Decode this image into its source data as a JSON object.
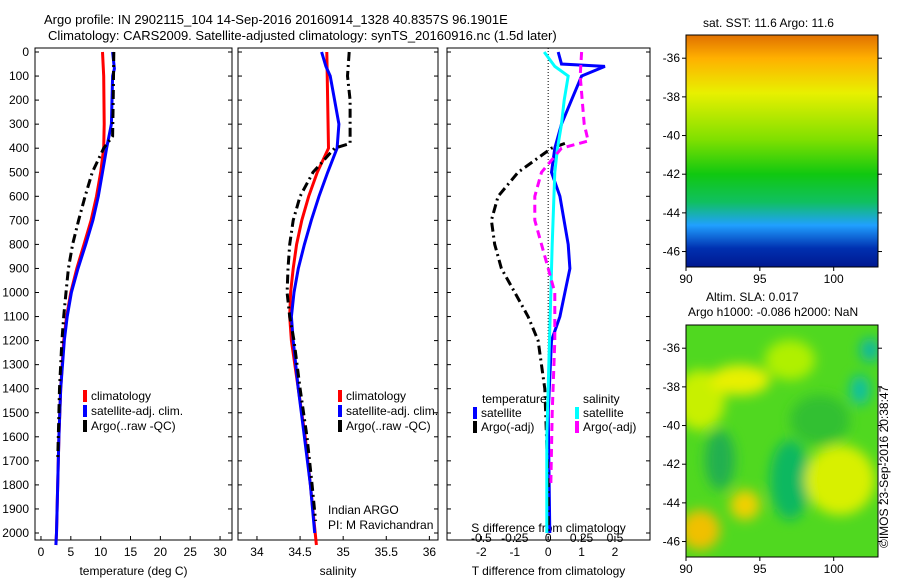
{
  "title_line1": "Argo profile: IN 2902115_104 14-Sep-2016 20160914_1328 40.8357S 96.1901E",
  "title_line2": "Climatology: CARS2009. Satellite-adjusted climatology: synTS_20160916.nc (1.5d later)",
  "credit": "©IMOS 23-Sep-2016 20:38:47",
  "chart_data": [
    {
      "type": "line",
      "id": "temperature",
      "xlabel": "temperature (deg C)",
      "xlim": [
        -1,
        32
      ],
      "ylim": [
        2060,
        0
      ],
      "xticks": [
        0,
        5,
        10,
        15,
        20,
        25,
        30
      ],
      "yticks": [
        0,
        100,
        200,
        300,
        400,
        500,
        600,
        700,
        800,
        900,
        1000,
        1100,
        1200,
        1300,
        1400,
        1500,
        1600,
        1700,
        1800,
        1900,
        2000
      ],
      "legend": [
        "climatology",
        "satellite-adj. clim.",
        "Argo(..raw -QC)"
      ],
      "series": [
        {
          "name": "climatology",
          "color": "#ff0000",
          "dash": false,
          "depth": [
            0,
            100,
            300,
            400,
            500,
            600,
            700,
            800,
            900,
            1000,
            1100,
            1200,
            1400,
            1600,
            1800,
            2000,
            2050
          ],
          "values": [
            10.3,
            10.5,
            10.6,
            10.5,
            10.0,
            9.3,
            8.4,
            7.2,
            6.0,
            5.0,
            4.3,
            3.8,
            3.3,
            3.0,
            2.8,
            2.6,
            2.5
          ]
        },
        {
          "name": "satellite-adj. clim.",
          "color": "#0000ff",
          "dash": false,
          "depth": [
            0,
            70,
            100,
            300,
            400,
            500,
            600,
            700,
            800,
            900,
            1000,
            1100,
            1200,
            1400,
            1600,
            1800,
            2000,
            2050
          ],
          "values": [
            12.0,
            12.3,
            12.0,
            11.8,
            11.0,
            10.3,
            9.6,
            8.7,
            7.5,
            6.2,
            5.1,
            4.4,
            3.9,
            3.3,
            3.0,
            2.8,
            2.6,
            2.5
          ]
        },
        {
          "name": "Argo(..raw -QC)",
          "color": "#000000",
          "dash": true,
          "depth": [
            0,
            200,
            350,
            400,
            500,
            600,
            700,
            800,
            900,
            1000,
            1100,
            1200,
            1400,
            1600,
            1700
          ],
          "values": [
            12.2,
            12.1,
            12.0,
            10.5,
            8.6,
            7.4,
            6.3,
            5.3,
            4.6,
            4.2,
            3.8,
            3.5,
            3.1,
            2.9,
            2.8
          ]
        }
      ]
    },
    {
      "type": "line",
      "id": "salinity",
      "xlabel": "salinity",
      "xlim": [
        33.78,
        36.1
      ],
      "ylim": [
        2060,
        0
      ],
      "xticks": [
        34,
        34.5,
        35,
        35.5,
        36
      ],
      "legend": [
        "climatology",
        "satellite-adj. clim.",
        "Argo(..raw -QC)"
      ],
      "annotation": [
        "Indian ARGO",
        "PI: M Ravichandran"
      ],
      "series": [
        {
          "name": "climatology",
          "color": "#ff0000",
          "dash": false,
          "depth": [
            0,
            400,
            500,
            600,
            700,
            800,
            900,
            1000,
            1100,
            1200,
            1400,
            1600,
            1800,
            2050
          ],
          "values": [
            34.81,
            34.83,
            34.7,
            34.6,
            34.52,
            34.46,
            34.42,
            34.39,
            34.38,
            34.4,
            34.48,
            34.56,
            34.62,
            34.69
          ]
        },
        {
          "name": "satellite-adj. clim.",
          "color": "#0000ff",
          "dash": false,
          "depth": [
            0,
            60,
            100,
            200,
            300,
            400,
            500,
            600,
            700,
            800,
            900,
            1000,
            1100,
            1200,
            1400,
            1600,
            1800,
            2000
          ],
          "values": [
            34.75,
            34.8,
            34.85,
            34.9,
            34.95,
            34.93,
            34.82,
            34.72,
            34.63,
            34.55,
            34.48,
            34.43,
            34.4,
            34.42,
            34.48,
            34.55,
            34.62,
            34.67
          ]
        },
        {
          "name": "Argo(..raw -QC)",
          "color": "#000000",
          "dash": true,
          "depth": [
            0,
            100,
            200,
            380,
            400,
            500,
            600,
            700,
            800,
            900,
            1000,
            1100,
            1200,
            1400,
            1600,
            1800,
            1950
          ],
          "values": [
            35.07,
            35.05,
            35.08,
            35.08,
            34.9,
            34.65,
            34.5,
            34.42,
            34.38,
            34.36,
            34.35,
            34.38,
            34.43,
            34.5,
            34.58,
            34.64,
            34.68
          ]
        }
      ]
    },
    {
      "type": "line",
      "id": "difference",
      "xlabel": "T difference from climatology",
      "xlabel2": "S difference from climatology",
      "xlim": [
        -3.03,
        3.05
      ],
      "xticks": [
        -2,
        -1,
        0,
        1,
        2
      ],
      "s_xticks": [
        "-0.5",
        "-0.25",
        "0",
        "0.25",
        "0.5"
      ],
      "s_xtick_values": [
        -0.5,
        -0.25,
        0,
        0.25,
        0.5
      ],
      "s_to_t_factor": 4,
      "legend_temperature_title": "temperature",
      "legend_salinity_title": "salinity",
      "legend": [
        "satellite",
        "Argo(-adj)",
        "satellite",
        "Argo(-adj)"
      ],
      "series": [
        {
          "name": "temperature satellite",
          "color": "#0000ff",
          "dash": false,
          "unit": "T",
          "depth": [
            0,
            50,
            60,
            100,
            200,
            300,
            400,
            500,
            600,
            800,
            900,
            1000,
            1100,
            1200,
            1500,
            2000
          ],
          "values": [
            0.3,
            0.4,
            1.7,
            1.0,
            0.7,
            0.4,
            0.2,
            0.1,
            0.35,
            0.6,
            0.65,
            0.5,
            0.35,
            0.1,
            0.0,
            0.05
          ]
        },
        {
          "name": "temperature Argo(-adj)",
          "color": "#000000",
          "dash": true,
          "unit": "T",
          "depth": [
            380,
            400,
            500,
            600,
            700,
            800,
            900,
            1000,
            1100,
            1200,
            1400,
            1600,
            1800,
            2000
          ],
          "values": [
            0.5,
            0.1,
            -0.9,
            -1.5,
            -1.7,
            -1.6,
            -1.4,
            -1.0,
            -0.6,
            -0.3,
            -0.1,
            -0.05,
            0.0,
            0.0
          ]
        },
        {
          "name": "salinity satellite",
          "color": "#00ffff",
          "dash": false,
          "unit": "S",
          "depth": [
            0,
            60,
            100,
            200,
            300,
            400,
            500,
            800,
            1200,
            1600,
            2000
          ],
          "values": [
            -0.03,
            0.05,
            0.15,
            0.12,
            0.1,
            0.07,
            0.05,
            0.03,
            0.01,
            -0.01,
            -0.01
          ]
        },
        {
          "name": "salinity Argo(-adj)",
          "color": "#ff00ff",
          "dash": true,
          "unit": "S",
          "depth": [
            0,
            100,
            300,
            370,
            400,
            500,
            600,
            700,
            800,
            900,
            1000,
            1200,
            1500,
            1800
          ],
          "values": [
            0.25,
            0.24,
            0.27,
            0.3,
            0.1,
            -0.05,
            -0.1,
            -0.1,
            -0.05,
            0.0,
            0.05,
            0.05,
            0.03,
            0.02
          ]
        }
      ]
    },
    {
      "type": "heatmap",
      "id": "sst-map",
      "title": "sat. SST: 11.6 Argo: 11.6",
      "xlim": [
        90,
        103
      ],
      "ylim": [
        -46.8,
        -34.8
      ],
      "xticks": [
        90,
        95,
        100
      ],
      "yticks": [
        -36,
        -38,
        -40,
        -42,
        -44,
        -46
      ]
    },
    {
      "type": "heatmap",
      "id": "sla-map",
      "title_line1": "Altim. SLA: 0.017",
      "title_line2": "Argo h1000: -0.086 h2000: NaN",
      "xlim": [
        90,
        103
      ],
      "ylim": [
        -46.8,
        -34.8
      ],
      "xticks": [
        90,
        95,
        100
      ],
      "yticks": [
        -36,
        -38,
        -40,
        -42,
        -44,
        -46
      ]
    }
  ]
}
